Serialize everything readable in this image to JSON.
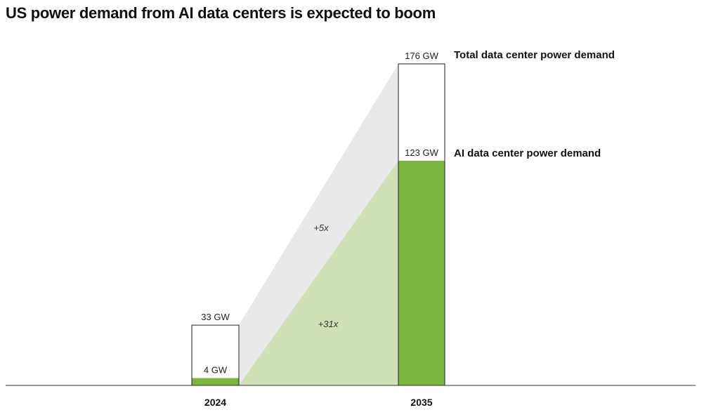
{
  "chart_data": {
    "type": "bar",
    "title": "US power demand from AI data centers is expected to boom",
    "categories": [
      "2024",
      "2035"
    ],
    "series": [
      {
        "name": "Total data center power demand",
        "values": [
          33,
          176
        ],
        "labels": [
          "33 GW",
          "176 GW"
        ]
      },
      {
        "name": "AI data center power demand",
        "values": [
          4,
          123
        ],
        "labels": [
          "4 GW",
          "123 GW"
        ]
      }
    ],
    "annotations": [
      "+5x",
      "+31x"
    ],
    "colors": {
      "ai": "#7ab53e",
      "ai_band": "#d0e0b7",
      "total_band": "#e9e9ea",
      "outline": "#222222"
    },
    "ylim": [
      0,
      176
    ]
  }
}
